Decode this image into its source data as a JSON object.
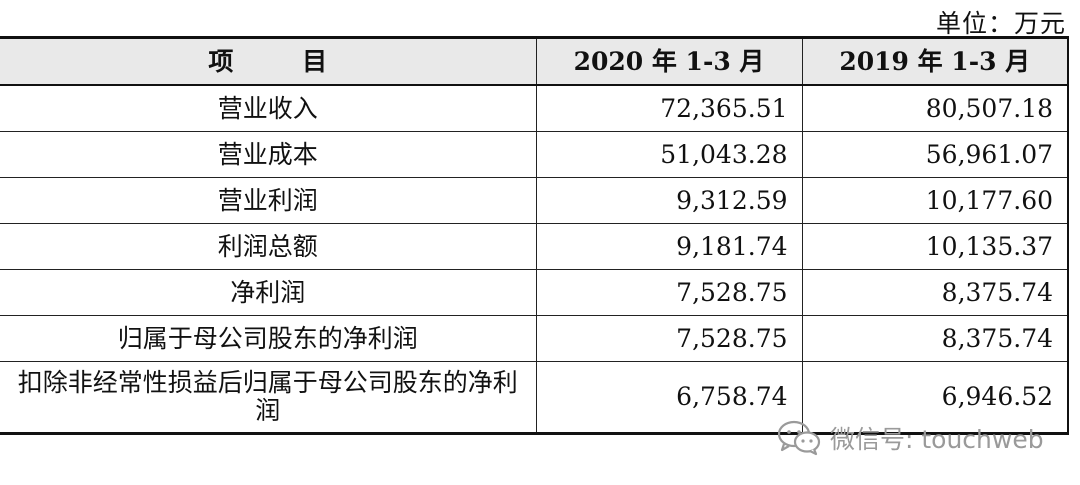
{
  "unit_label": "单位：万元",
  "table": {
    "headers": [
      "项 目",
      "2020 年 1-3 月",
      "2019 年 1-3 月"
    ],
    "rows": [
      {
        "item": "营业收入",
        "v2020": "72,365.51",
        "v2019": "80,507.18"
      },
      {
        "item": "营业成本",
        "v2020": "51,043.28",
        "v2019": "56,961.07"
      },
      {
        "item": "营业利润",
        "v2020": "9,312.59",
        "v2019": "10,177.60"
      },
      {
        "item": "利润总额",
        "v2020": "9,181.74",
        "v2019": "10,135.37"
      },
      {
        "item": "净利润",
        "v2020": "7,528.75",
        "v2019": "8,375.74"
      },
      {
        "item": "归属于母公司股东的净利润",
        "v2020": "7,528.75",
        "v2019": "8,375.74"
      },
      {
        "item": "扣除非经常性损益后归属于母公司股东的净利润",
        "v2020": "6,758.74",
        "v2019": "6,946.52"
      }
    ]
  },
  "watermark": {
    "icon": "wechat-icon",
    "text": "微信号: touchweb"
  }
}
